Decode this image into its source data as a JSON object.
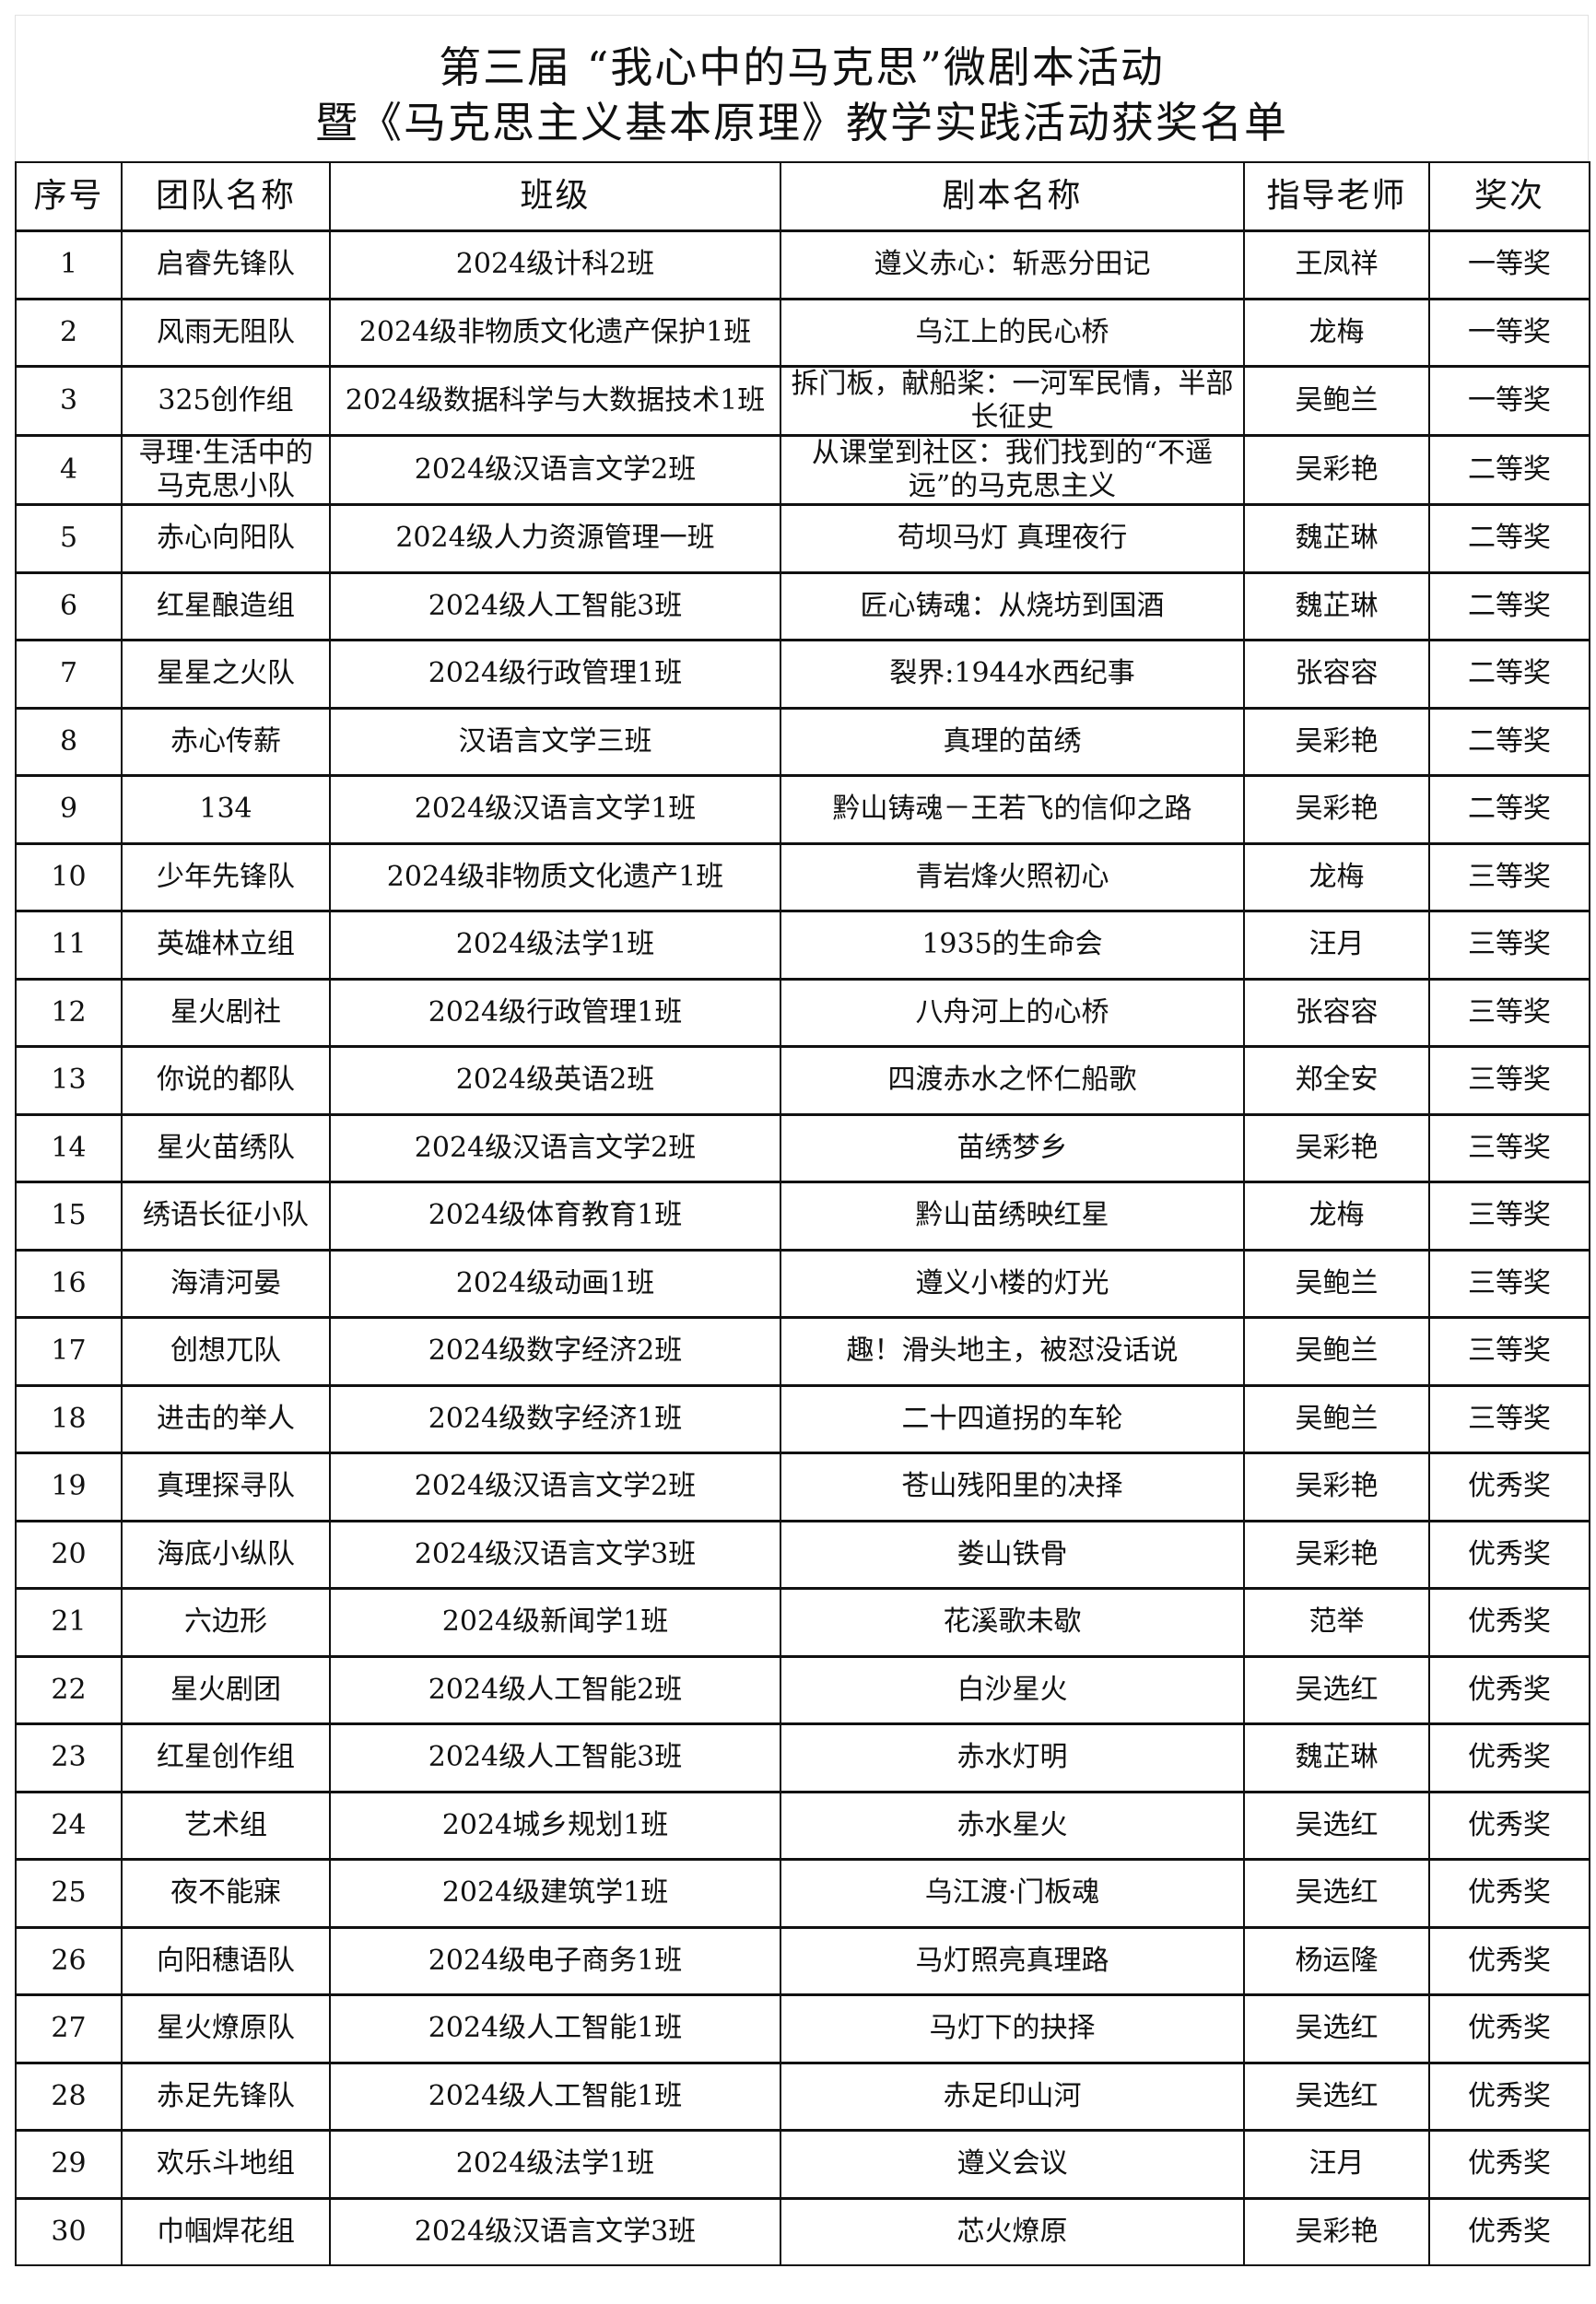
{
  "title": {
    "line1": "第三届 “我心中的马克思”微剧本活动",
    "line2": "暨《马克思主义基本原理》教学实践活动获奖名单"
  },
  "table": {
    "headers": [
      "序号",
      "团队名称",
      "班级",
      "剧本名称",
      "指导老师",
      "奖次"
    ],
    "rows": [
      [
        "1",
        "启睿先锋队",
        "2024级计科2班",
        "遵义赤心：斩恶分田记",
        "王凤祥",
        "一等奖"
      ],
      [
        "2",
        "风雨无阻队",
        "2024级非物质文化遗产保护1班",
        "乌江上的民心桥",
        "龙梅",
        "一等奖"
      ],
      [
        "3",
        "325创作组",
        "2024级数据科学与大数据技术1班",
        "拆门板，献船桨：一河军民情，半部长征史",
        "吴鲍兰",
        "一等奖"
      ],
      [
        "4",
        "寻理·生活中的马克思小队",
        "2024级汉语言文学2班",
        "从课堂到社区：我们找到的“不遥远”的马克思主义",
        "吴彩艳",
        "二等奖"
      ],
      [
        "5",
        "赤心向阳队",
        "2024级人力资源管理一班",
        "苟坝马灯 真理夜行",
        "魏芷琳",
        "二等奖"
      ],
      [
        "6",
        "红星酿造组",
        "2024级人工智能3班",
        "匠心铸魂：从烧坊到国酒",
        "魏芷琳",
        "二等奖"
      ],
      [
        "7",
        "星星之火队",
        "2024级行政管理1班",
        "裂界:1944水西纪事",
        "张容容",
        "二等奖"
      ],
      [
        "8",
        "赤心传薪",
        "汉语言文学三班",
        "真理的苗绣",
        "吴彩艳",
        "二等奖"
      ],
      [
        "9",
        "134",
        "2024级汉语言文学1班",
        "黔山铸魂－王若飞的信仰之路",
        "吴彩艳",
        "二等奖"
      ],
      [
        "10",
        "少年先锋队",
        "2024级非物质文化遗产1班",
        "青岩烽火照初心",
        "龙梅",
        "三等奖"
      ],
      [
        "11",
        "英雄林立组",
        "2024级法学1班",
        "1935的生命会",
        "汪月",
        "三等奖"
      ],
      [
        "12",
        "星火剧社",
        "2024级行政管理1班",
        "八舟河上的心桥",
        "张容容",
        "三等奖"
      ],
      [
        "13",
        "你说的都队",
        "2024级英语2班",
        "四渡赤水之怀仁船歌",
        "郑全安",
        "三等奖"
      ],
      [
        "14",
        "星火苗绣队",
        "2024级汉语言文学2班",
        "苗绣梦乡",
        "吴彩艳",
        "三等奖"
      ],
      [
        "15",
        "绣语长征小队",
        "2024级体育教育1班",
        "黔山苗绣映红星",
        "龙梅",
        "三等奖"
      ],
      [
        "16",
        "海清河晏",
        "2024级动画1班",
        "遵义小楼的灯光",
        "吴鲍兰",
        "三等奖"
      ],
      [
        "17",
        "创想兀队",
        "2024级数字经济2班",
        "趣！滑头地主，被怼没话说",
        "吴鲍兰",
        "三等奖"
      ],
      [
        "18",
        "进击的举人",
        "2024级数字经济1班",
        "二十四道拐的车轮",
        "吴鲍兰",
        "三等奖"
      ],
      [
        "19",
        "真理探寻队",
        "2024级汉语言文学2班",
        "苍山残阳里的决择",
        "吴彩艳",
        "优秀奖"
      ],
      [
        "20",
        "海底小纵队",
        "2024级汉语言文学3班",
        "娄山铁骨",
        "吴彩艳",
        "优秀奖"
      ],
      [
        "21",
        "六边形",
        "2024级新闻学1班",
        "花溪歌未歇",
        "范举",
        "优秀奖"
      ],
      [
        "22",
        "星火剧团",
        "2024级人工智能2班",
        "白沙星火",
        "吴选红",
        "优秀奖"
      ],
      [
        "23",
        "红星创作组",
        "2024级人工智能3班",
        "赤水灯明",
        "魏芷琳",
        "优秀奖"
      ],
      [
        "24",
        "艺术组",
        "2024城乡规划1班",
        "赤水星火",
        "吴选红",
        "优秀奖"
      ],
      [
        "25",
        "夜不能寐",
        "2024级建筑学1班",
        "乌江渡·门板魂",
        "吴选红",
        "优秀奖"
      ],
      [
        "26",
        "向阳穗语队",
        "2024级电子商务1班",
        "马灯照亮真理路",
        "杨运隆",
        "优秀奖"
      ],
      [
        "27",
        "星火燎原队",
        "2024级人工智能1班",
        "马灯下的抉择",
        "吴选红",
        "优秀奖"
      ],
      [
        "28",
        "赤足先锋队",
        "2024级人工智能1班",
        "赤足印山河",
        "吴选红",
        "优秀奖"
      ],
      [
        "29",
        "欢乐斗地组",
        "2024级法学1班",
        "遵义会议",
        "汪月",
        "优秀奖"
      ],
      [
        "30",
        "巾帼焊花组",
        "2024级汉语言文学3班",
        "芯火燎原",
        "吴彩艳",
        "优秀奖"
      ]
    ]
  }
}
